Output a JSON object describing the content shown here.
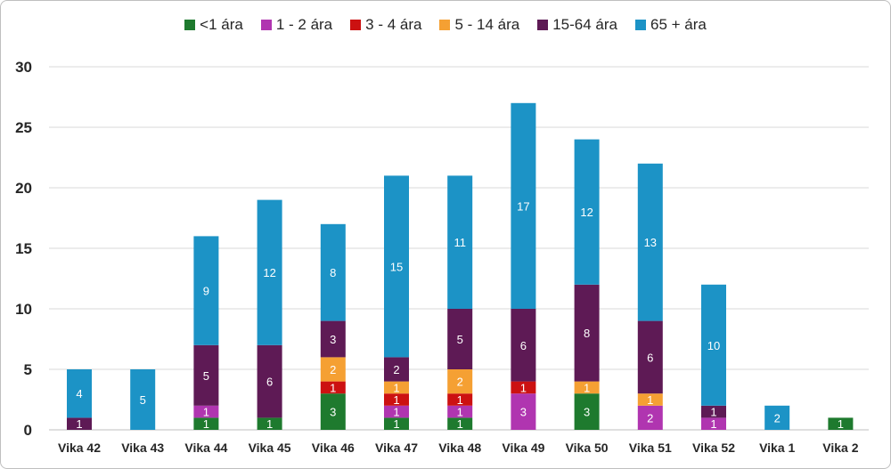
{
  "chart_data": {
    "type": "bar",
    "stacked": true,
    "title": "",
    "xlabel": "",
    "ylabel": "",
    "ylim": [
      0,
      30
    ],
    "yticks": [
      0,
      5,
      10,
      15,
      20,
      25,
      30
    ],
    "grid": true,
    "legend_position": "top",
    "categories": [
      "Vika 42",
      "Vika 43",
      "Vika 44",
      "Vika 45",
      "Vika 46",
      "Vika 47",
      "Vika 48",
      "Vika 49",
      "Vika 50",
      "Vika 51",
      "Vika 52",
      "Vika 1",
      "Vika 2"
    ],
    "series": [
      {
        "name": "<1 ára",
        "color": "#1e7a2e",
        "values": [
          0,
          0,
          1,
          1,
          3,
          1,
          1,
          0,
          3,
          0,
          0,
          0,
          1
        ]
      },
      {
        "name": "1 - 2 ára",
        "color": "#b035b0",
        "values": [
          0,
          0,
          1,
          0,
          0,
          1,
          1,
          3,
          0,
          2,
          1,
          0,
          0
        ]
      },
      {
        "name": "3 - 4 ára",
        "color": "#cc1111",
        "values": [
          0,
          0,
          0,
          0,
          1,
          1,
          1,
          1,
          0,
          0,
          0,
          0,
          0
        ]
      },
      {
        "name": "5 - 14 ára",
        "color": "#f5a033",
        "values": [
          0,
          0,
          0,
          0,
          2,
          1,
          2,
          0,
          1,
          1,
          0,
          0,
          0
        ]
      },
      {
        "name": "15-64 ára",
        "color": "#5e1a55",
        "values": [
          1,
          0,
          5,
          6,
          3,
          2,
          5,
          6,
          8,
          6,
          1,
          0,
          0
        ]
      },
      {
        "name": "65 + ára",
        "color": "#1c93c6",
        "values": [
          4,
          5,
          9,
          12,
          8,
          15,
          11,
          17,
          12,
          13,
          10,
          2,
          0
        ]
      }
    ]
  }
}
